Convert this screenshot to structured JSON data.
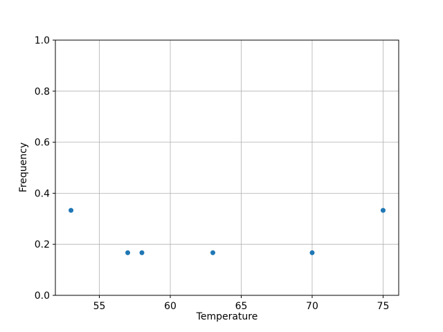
{
  "chart_data": {
    "type": "scatter",
    "title": "",
    "xlabel": "Temperature",
    "ylabel": "Frequency",
    "x": [
      53,
      57,
      58,
      63,
      70,
      75
    ],
    "y": [
      0.333,
      0.167,
      0.167,
      0.167,
      0.167,
      0.333
    ],
    "xlim": [
      51.9,
      76.1
    ],
    "ylim": [
      0.0,
      1.0
    ],
    "xticks": [
      55,
      60,
      65,
      70,
      75
    ],
    "yticks": [
      0.0,
      0.2,
      0.4,
      0.6,
      0.8,
      1.0
    ],
    "grid": true,
    "legend": "none",
    "marker_color": "#1f77b4",
    "grid_color": "#b0b0b0",
    "spine_color": "#000000",
    "background_color": "#ffffff"
  }
}
